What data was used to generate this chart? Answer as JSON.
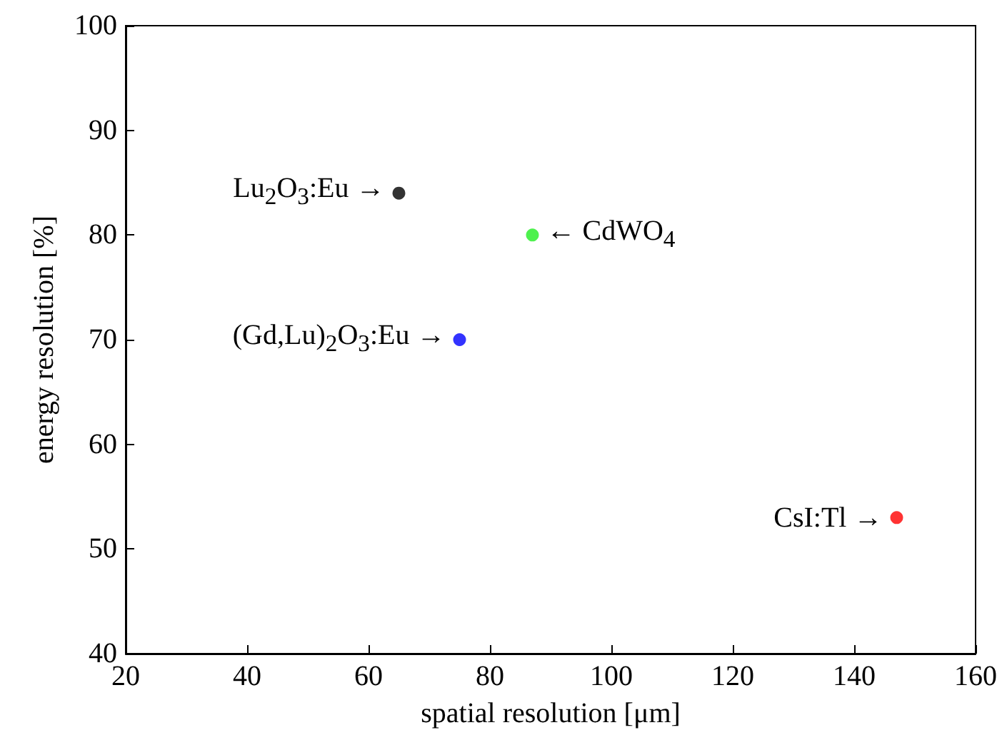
{
  "chart_data": {
    "type": "scatter",
    "xlabel": "spatial resolution [μm]",
    "ylabel": "energy resolution [%]",
    "x": [
      65,
      87,
      75,
      147
    ],
    "values": [
      84,
      80,
      70,
      53
    ],
    "colors": [
      "#000000",
      "#22ee22",
      "#0000ff",
      "#ff0000"
    ],
    "marker": "circle",
    "grid": false,
    "xlim": [
      20,
      160
    ],
    "xticks": [
      20,
      40,
      60,
      80,
      100,
      120,
      140,
      160
    ],
    "ylim": [
      40,
      100
    ],
    "yticks": [
      40,
      50,
      60,
      70,
      80,
      90,
      100
    ],
    "annotations": [
      {
        "text": "Lu$_{2}$O$_{3}$:Eu →",
        "x": 65,
        "y": 84
      },
      {
        "text": "← CdWO$_{4}$",
        "x": 87,
        "y": 80
      },
      {
        "text": "(Gd,Lu)$_{2}$O$_{3}$:Eu →",
        "x": 75,
        "y": 70
      },
      {
        "text": "CsI:Tl →",
        "x": 147,
        "y": 53
      }
    ]
  }
}
